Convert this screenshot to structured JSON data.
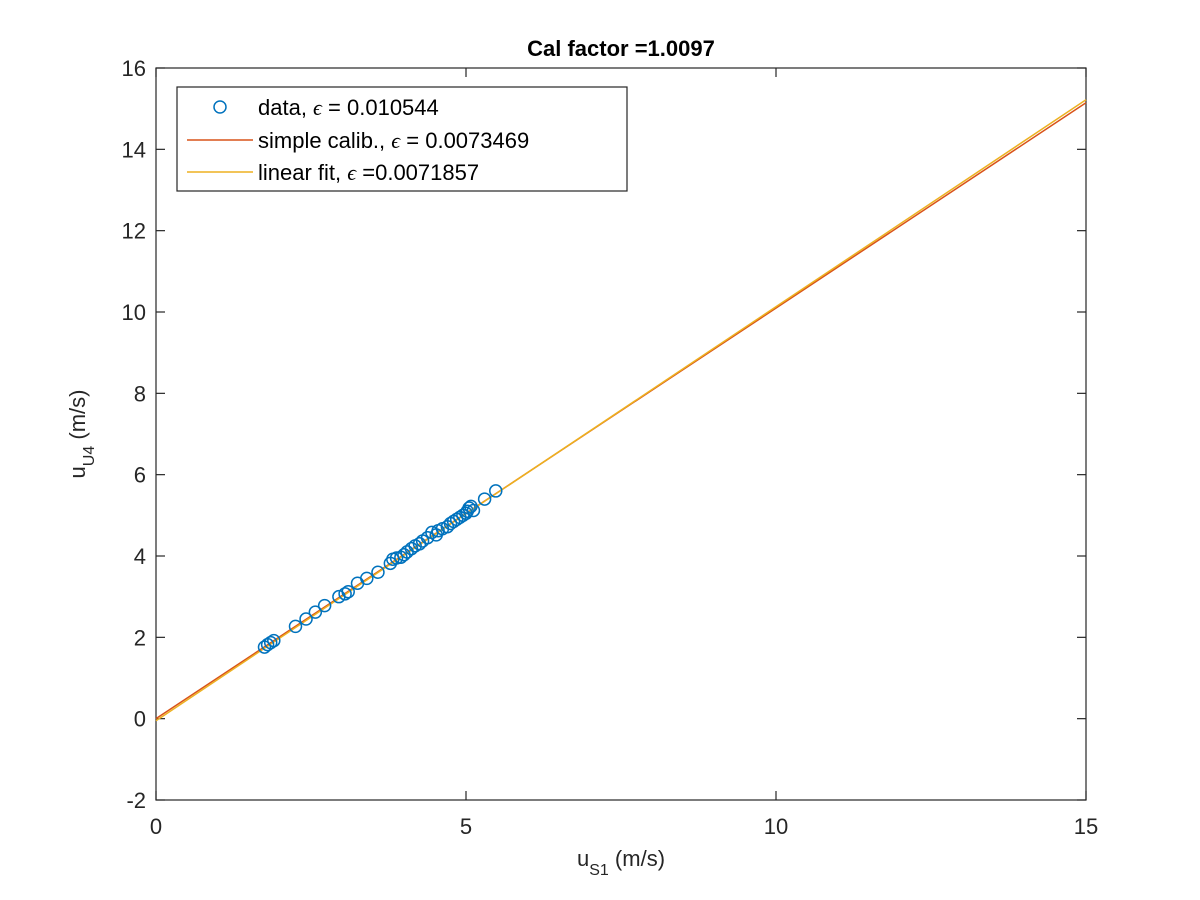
{
  "chart_data": {
    "type": "scatter",
    "title": "Cal factor =1.0097",
    "xlabel": {
      "base": "u",
      "sub": "S1",
      "unit": " (m/s)"
    },
    "ylabel": {
      "base": "u",
      "sub": "U4",
      "unit": " (m/s)"
    },
    "xlim": [
      0,
      15
    ],
    "ylim": [
      -2,
      16
    ],
    "xticks": [
      0,
      5,
      10,
      15
    ],
    "yticks": [
      -2,
      0,
      2,
      4,
      6,
      8,
      10,
      12,
      14,
      16
    ],
    "grid": false,
    "legend_position": "top-left",
    "colors": {
      "data": "#0072BD",
      "simple": "#D95319",
      "linear": "#EDB120"
    },
    "series": [
      {
        "name": {
          "pre": "data, ",
          "post": " = 0.010544"
        },
        "kind": "points",
        "points": [
          [
            1.75,
            1.76
          ],
          [
            1.8,
            1.82
          ],
          [
            1.85,
            1.87
          ],
          [
            1.9,
            1.92
          ],
          [
            2.25,
            2.27
          ],
          [
            2.42,
            2.45
          ],
          [
            2.57,
            2.62
          ],
          [
            2.72,
            2.78
          ],
          [
            2.95,
            3.0
          ],
          [
            3.05,
            3.07
          ],
          [
            3.1,
            3.12
          ],
          [
            3.25,
            3.33
          ],
          [
            3.4,
            3.45
          ],
          [
            3.58,
            3.6
          ],
          [
            3.78,
            3.82
          ],
          [
            3.82,
            3.92
          ],
          [
            3.88,
            3.95
          ],
          [
            3.95,
            3.97
          ],
          [
            4.0,
            4.03
          ],
          [
            4.05,
            4.1
          ],
          [
            4.12,
            4.18
          ],
          [
            4.18,
            4.25
          ],
          [
            4.25,
            4.3
          ],
          [
            4.3,
            4.37
          ],
          [
            4.38,
            4.45
          ],
          [
            4.45,
            4.58
          ],
          [
            4.52,
            4.52
          ],
          [
            4.55,
            4.62
          ],
          [
            4.62,
            4.67
          ],
          [
            4.7,
            4.72
          ],
          [
            4.75,
            4.8
          ],
          [
            4.8,
            4.85
          ],
          [
            4.85,
            4.9
          ],
          [
            4.9,
            4.95
          ],
          [
            4.95,
            5.0
          ],
          [
            5.0,
            5.05
          ],
          [
            5.02,
            5.1
          ],
          [
            5.05,
            5.18
          ],
          [
            5.08,
            5.22
          ],
          [
            5.12,
            5.12
          ],
          [
            5.3,
            5.4
          ],
          [
            5.48,
            5.6
          ]
        ]
      },
      {
        "name": {
          "pre": "simple calib., ",
          "post": " = 0.0073469"
        },
        "kind": "line",
        "points": [
          [
            0,
            0
          ],
          [
            15,
            15.1455
          ]
        ]
      },
      {
        "name": {
          "pre": "linear fit, ",
          "post": " =0.0071857"
        },
        "kind": "line",
        "points": [
          [
            0,
            -0.05
          ],
          [
            15,
            15.22
          ]
        ]
      }
    ],
    "legend_symbol": "ϵ"
  }
}
